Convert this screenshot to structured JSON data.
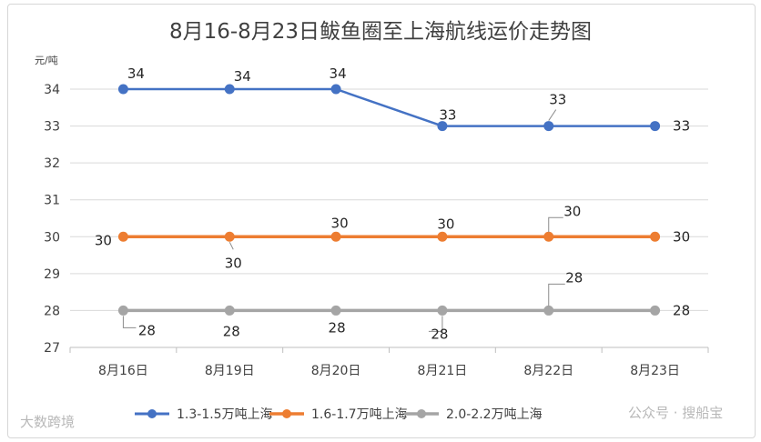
{
  "chart_data": {
    "type": "line",
    "title": "8月16-8月23日鲅鱼圈至上海航线运价走势图",
    "ylabel": "元/吨",
    "xlabel": "",
    "categories": [
      "8月16日",
      "8月19日",
      "8月20日",
      "8月21日",
      "8月22日",
      "8月23日"
    ],
    "ylim": [
      27,
      35
    ],
    "yticks": [
      27,
      28,
      29,
      30,
      31,
      32,
      33,
      34
    ],
    "grid": true,
    "legend_position": "bottom",
    "series": [
      {
        "name": "1.3-1.5万吨上海",
        "color": "#4472c4",
        "values": [
          34,
          34,
          34,
          33,
          33,
          33
        ]
      },
      {
        "name": "1.6-1.7万吨上海",
        "color": "#ed7d31",
        "values": [
          30,
          30,
          30,
          30,
          30,
          30
        ]
      },
      {
        "name": "2.0-2.2万吨上海",
        "color": "#a5a5a5",
        "values": [
          28,
          28,
          28,
          28,
          28,
          28
        ]
      }
    ]
  },
  "watermarks": {
    "left": "大数跨境",
    "right": "公众号 · 搜船宝"
  }
}
